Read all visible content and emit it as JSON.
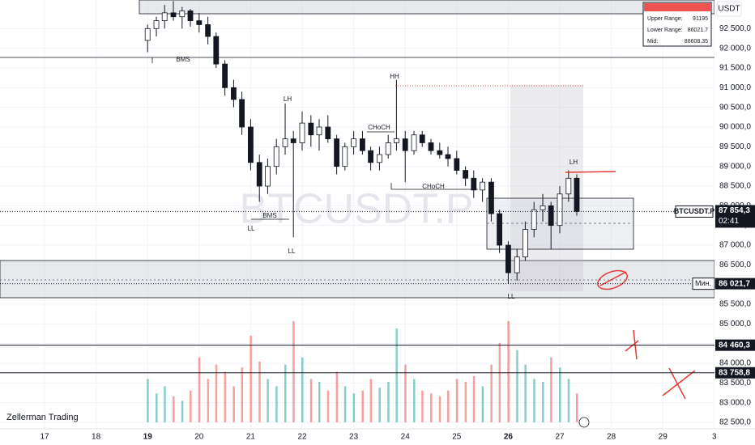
{
  "chart_data": {
    "type": "candlestick",
    "watermark": "BTCUSDT.P",
    "branding": "Zellerman Trading",
    "currency": "USDT",
    "xlim": [
      16.135,
      30.003
    ],
    "ylim": [
      82336,
      93226
    ],
    "xticks": [
      17,
      18,
      19,
      20,
      21,
      22,
      23,
      24,
      25,
      26,
      27,
      28,
      29,
      {
        "value": 30,
        "label": "3"
      }
    ],
    "yticks": [
      {
        "value": 82500,
        "label": "82 500,0"
      },
      {
        "value": 83000,
        "label": "83 000,0"
      },
      {
        "value": 83500,
        "label": "83 500,0"
      },
      {
        "value": 84000,
        "label": "84 000,0"
      },
      {
        "value": 84500,
        "label": "84 500,0"
      },
      {
        "value": 85000,
        "label": "85 000,0"
      },
      {
        "value": 85500,
        "label": "85 500,0"
      },
      {
        "value": 86000,
        "label": "86 000,0"
      },
      {
        "value": 86500,
        "label": "86 500,0"
      },
      {
        "value": 87000,
        "label": "87 000,0"
      },
      {
        "value": 87500,
        "label": "87 500,0"
      },
      {
        "value": 88000,
        "label": "88 000,0"
      },
      {
        "value": 88500,
        "label": "88 500,0"
      },
      {
        "value": 89000,
        "label": "89 000,0"
      },
      {
        "value": 89500,
        "label": "89 500,0"
      },
      {
        "value": 90000,
        "label": "90 000,0"
      },
      {
        "value": 90500,
        "label": "90 500,0"
      },
      {
        "value": 91000,
        "label": "91 000,0"
      },
      {
        "value": 91500,
        "label": "91 500,0"
      },
      {
        "value": 92000,
        "label": "92 000,0"
      },
      {
        "value": 92500,
        "label": "92 500,0"
      }
    ],
    "grid": true,
    "up_color": "#26a69a",
    "down_color": "#ef5350",
    "x": [
      19.0,
      19.17,
      19.33,
      19.5,
      19.67,
      19.83,
      20.0,
      20.17,
      20.33,
      20.5,
      20.67,
      20.83,
      21.0,
      21.17,
      21.33,
      21.5,
      21.67,
      21.83,
      22.0,
      22.17,
      22.33,
      22.5,
      22.67,
      22.83,
      23.0,
      23.17,
      23.33,
      23.5,
      23.67,
      23.83,
      24.0,
      24.17,
      24.33,
      24.5,
      24.67,
      24.83,
      25.0,
      25.17,
      25.33,
      25.5,
      25.67,
      25.83,
      26.0,
      26.17,
      26.33,
      26.5,
      26.67,
      26.83,
      27.0,
      27.17,
      27.33
    ],
    "open": [
      92200,
      92500,
      92700,
      92900,
      92800,
      92950,
      92700,
      92600,
      92300,
      91600,
      91000,
      90700,
      90000,
      89100,
      88500,
      89000,
      89500,
      89700,
      89600,
      90100,
      89800,
      90000,
      89700,
      89000,
      89500,
      89700,
      89400,
      89100,
      89300,
      89600,
      89700,
      89400,
      89800,
      89600,
      89400,
      89300,
      89200,
      88900,
      88700,
      88400,
      88600,
      87800,
      87000,
      86300,
      86700,
      87400,
      87900,
      88000,
      87500,
      88300,
      88700
    ],
    "high": [
      92600,
      92800,
      93100,
      93200,
      93050,
      93000,
      92900,
      92800,
      92400,
      91700,
      91200,
      90900,
      90200,
      89300,
      89200,
      89700,
      90600,
      89900,
      90400,
      90300,
      90200,
      90300,
      89800,
      89600,
      89900,
      89900,
      89500,
      89500,
      89800,
      91200,
      89900,
      89900,
      89900,
      89700,
      89600,
      89500,
      89400,
      89000,
      88900,
      88700,
      88700,
      87900,
      87100,
      86900,
      87600,
      88100,
      88300,
      88100,
      88500,
      88900,
      88800
    ],
    "low": [
      91900,
      92300,
      92500,
      92700,
      92500,
      92550,
      92400,
      92100,
      91500,
      90800,
      90500,
      89800,
      88900,
      88100,
      88300,
      88800,
      89300,
      87200,
      89400,
      89500,
      89400,
      89600,
      88800,
      88900,
      89300,
      89300,
      88900,
      88900,
      89200,
      89400,
      88600,
      89300,
      89500,
      89300,
      89200,
      89000,
      88800,
      88500,
      88200,
      88100,
      87600,
      86800,
      86020,
      86100,
      86600,
      87200,
      87600,
      86900,
      87300,
      88100,
      87750
    ],
    "close": [
      92500,
      92700,
      92900,
      92800,
      92950,
      92700,
      92600,
      92300,
      91600,
      91000,
      90700,
      90000,
      89100,
      88500,
      89000,
      89500,
      89700,
      89600,
      90100,
      89800,
      90000,
      89700,
      89000,
      89500,
      89700,
      89400,
      89100,
      89300,
      89600,
      89700,
      89400,
      89800,
      89600,
      89400,
      89300,
      89200,
      88900,
      88700,
      88400,
      88600,
      87800,
      87000,
      86300,
      86700,
      87400,
      87900,
      88000,
      87500,
      88300,
      88700,
      87854.3
    ],
    "volume": [
      30,
      20,
      25,
      18,
      15,
      22,
      45,
      30,
      40,
      35,
      25,
      38,
      60,
      42,
      30,
      25,
      40,
      70,
      45,
      30,
      28,
      22,
      35,
      25,
      20,
      22,
      30,
      24,
      28,
      65,
      40,
      30,
      22,
      20,
      18,
      22,
      30,
      28,
      32,
      25,
      40,
      55,
      70,
      50,
      40,
      30,
      28,
      45,
      38,
      30,
      20
    ],
    "annotations": [
      "BMS",
      "BMS",
      "LL",
      "LL",
      "LH",
      "HH",
      "CHoCH",
      "CHoCH",
      "LH",
      "LL"
    ],
    "last_price": {
      "symbol": "BTCUSDT.P",
      "price": {
        "value": 87854.3,
        "label": "87 854,3"
      },
      "countdown": "02:41"
    },
    "min_tag": {
      "label": "Мин.",
      "price": {
        "value": 86021.7,
        "label": "86 021,7"
      }
    },
    "levels": [
      {
        "value": 84460.3,
        "label": "84 460,3"
      },
      {
        "value": 83758.8,
        "label": "83 758,8"
      }
    ],
    "range_box": {
      "rows": [
        {
          "label": "Upper Range:",
          "value": 91195
        },
        {
          "label": "Lower Range:",
          "value": 86021.7
        },
        {
          "label": "Mid:",
          "value": 88608.35
        }
      ]
    }
  }
}
